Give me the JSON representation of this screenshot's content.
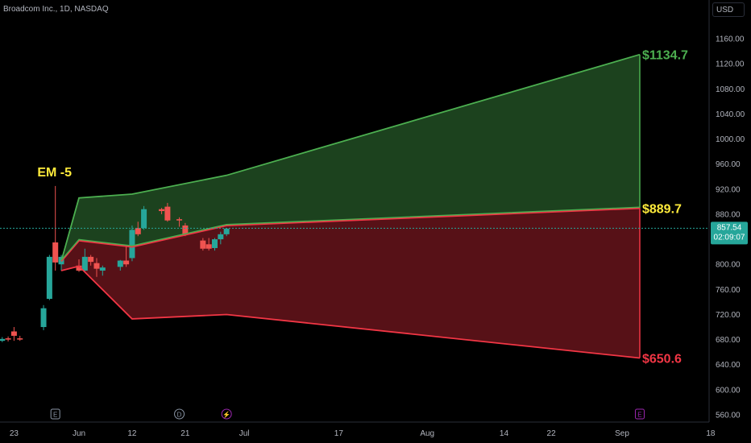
{
  "header": {
    "symbol_text": "Broadcom Inc., 1D, NASDAQ",
    "currency_button": "USD"
  },
  "price_badge": {
    "price": "857.54",
    "countdown": "02:09:07"
  },
  "chart_data": {
    "type": "candlestick",
    "ylim": [
      550,
      1185
    ],
    "y_ticks": [
      "1160.00",
      "1120.00",
      "1080.00",
      "1040.00",
      "1000.00",
      "960.00",
      "920.00",
      "880.00",
      "840.00",
      "800.00",
      "760.00",
      "720.00",
      "680.00",
      "640.00",
      "600.00",
      "560.00"
    ],
    "y_tick_values": [
      1160,
      1120,
      1080,
      1040,
      1000,
      960,
      920,
      880,
      840,
      800,
      760,
      720,
      680,
      640,
      600,
      560
    ],
    "x_ticks": [
      "23",
      "Jun",
      "12",
      "21",
      "Jul",
      "17",
      "Aug",
      "14",
      "22",
      "Sep",
      "18"
    ],
    "x_tick_dates": [
      "2024-05-23",
      "2024-06-03",
      "2024-06-12",
      "2024-06-21",
      "2024-07-01",
      "2024-07-17",
      "2024-08-01",
      "2024-08-14",
      "2024-08-22",
      "2024-09-03",
      "2024-09-18"
    ],
    "last_price": 857.54,
    "candles": [
      {
        "date": "2024-05-20",
        "open": 657,
        "high": 680,
        "low": 655,
        "close": 678
      },
      {
        "date": "2024-05-21",
        "open": 678,
        "high": 684,
        "low": 676,
        "close": 681
      },
      {
        "date": "2024-05-22",
        "open": 682,
        "high": 685,
        "low": 677,
        "close": 680
      },
      {
        "date": "2024-05-23",
        "open": 693,
        "high": 700,
        "low": 678,
        "close": 686
      },
      {
        "date": "2024-05-24",
        "open": 682,
        "high": 686,
        "low": 678,
        "close": 680
      },
      {
        "date": "2024-05-28",
        "open": 700,
        "high": 735,
        "low": 695,
        "close": 730
      },
      {
        "date": "2024-05-29",
        "open": 745,
        "high": 815,
        "low": 743,
        "close": 812
      },
      {
        "date": "2024-05-30",
        "open": 835,
        "high": 925,
        "low": 790,
        "close": 803
      },
      {
        "date": "2024-05-31",
        "open": 800,
        "high": 815,
        "low": 790,
        "close": 812
      },
      {
        "date": "2024-06-03",
        "open": 798,
        "high": 808,
        "low": 788,
        "close": 790
      },
      {
        "date": "2024-06-04",
        "open": 790,
        "high": 825,
        "low": 787,
        "close": 812
      },
      {
        "date": "2024-06-05",
        "open": 812,
        "high": 815,
        "low": 798,
        "close": 804
      },
      {
        "date": "2024-06-06",
        "open": 802,
        "high": 810,
        "low": 780,
        "close": 793
      },
      {
        "date": "2024-06-07",
        "open": 790,
        "high": 798,
        "low": 782,
        "close": 795
      },
      {
        "date": "2024-06-10",
        "open": 796,
        "high": 807,
        "low": 790,
        "close": 806
      },
      {
        "date": "2024-06-11",
        "open": 806,
        "high": 828,
        "low": 796,
        "close": 800
      },
      {
        "date": "2024-06-12",
        "open": 810,
        "high": 862,
        "low": 805,
        "close": 855
      },
      {
        "date": "2024-06-13",
        "open": 858,
        "high": 868,
        "low": 845,
        "close": 848
      },
      {
        "date": "2024-06-14",
        "open": 858,
        "high": 893,
        "low": 855,
        "close": 888
      },
      {
        "date": "2024-06-17",
        "open": 888,
        "high": 890,
        "low": 880,
        "close": 885
      },
      {
        "date": "2024-06-18",
        "open": 892,
        "high": 898,
        "low": 868,
        "close": 870
      },
      {
        "date": "2024-06-20",
        "open": 872,
        "high": 875,
        "low": 860,
        "close": 870
      },
      {
        "date": "2024-06-21",
        "open": 862,
        "high": 866,
        "low": 845,
        "close": 848
      },
      {
        "date": "2024-06-24",
        "open": 838,
        "high": 842,
        "low": 822,
        "close": 825
      },
      {
        "date": "2024-06-25",
        "open": 832,
        "high": 842,
        "low": 822,
        "close": 825
      },
      {
        "date": "2024-06-26",
        "open": 826,
        "high": 842,
        "low": 822,
        "close": 840
      },
      {
        "date": "2024-06-27",
        "open": 840,
        "high": 852,
        "low": 832,
        "close": 848
      },
      {
        "date": "2024-06-28",
        "open": 848,
        "high": 858,
        "low": 845,
        "close": 857
      }
    ],
    "bands": {
      "upper": [
        {
          "date": "2024-05-31",
          "value": 805
        },
        {
          "date": "2024-06-03",
          "value": 906
        },
        {
          "date": "2024-06-12",
          "value": 912
        },
        {
          "date": "2024-06-28",
          "value": 942
        },
        {
          "date": "2024-09-06",
          "value": 1134.7
        }
      ],
      "mid": [
        {
          "date": "2024-05-31",
          "value": 805
        },
        {
          "date": "2024-06-03",
          "value": 838
        },
        {
          "date": "2024-06-12",
          "value": 828
        },
        {
          "date": "2024-06-28",
          "value": 862
        },
        {
          "date": "2024-09-06",
          "value": 889.7
        }
      ],
      "lower": [
        {
          "date": "2024-05-31",
          "value": 790
        },
        {
          "date": "2024-06-03",
          "value": 797
        },
        {
          "date": "2024-06-12",
          "value": 713
        },
        {
          "date": "2024-06-28",
          "value": 720
        },
        {
          "date": "2024-09-06",
          "value": 650.6
        }
      ]
    },
    "annotations": {
      "em_label": "EM -5",
      "upper_label": "$1134.7",
      "mid_label": "$889.7",
      "lower_label": "$650.6"
    },
    "event_markers": [
      {
        "date": "2024-05-30",
        "letter": "E",
        "color": "#8a95a5"
      },
      {
        "date": "2024-06-20",
        "letter": "D",
        "color": "#8a95a5"
      },
      {
        "date": "2024-06-28",
        "letter": "⚡",
        "color": "#9c27b0"
      },
      {
        "date": "2024-09-06",
        "letter": "E",
        "color": "#9c27b0"
      }
    ],
    "colors": {
      "up": "#26a69a",
      "down": "#ef5350",
      "upper_band": "#4caf50",
      "lower_band": "#f23645",
      "upper_fill": "#1e4620",
      "lower_fill": "#5c1218",
      "mid_label": "#ffeb3b",
      "upper_label": "#4caf50",
      "lower_label": "#f23645",
      "price_badge": "#26a69a"
    }
  }
}
